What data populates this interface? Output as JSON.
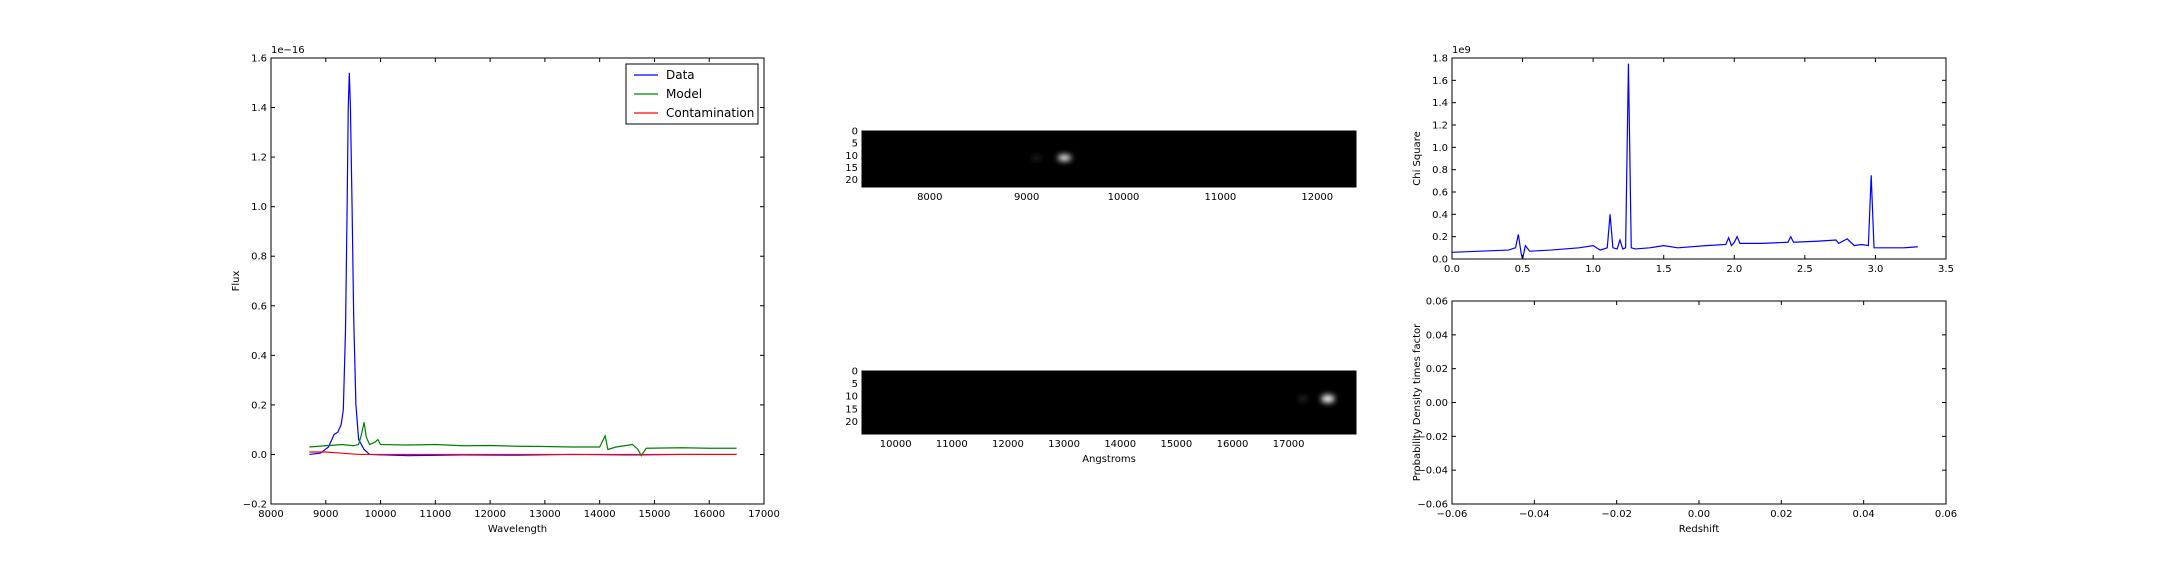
{
  "chart_data": [
    {
      "type": "line",
      "xlabel": "Wavelength",
      "ylabel": "Flux",
      "offset_text": "1e−16",
      "xlim": [
        8000,
        17000
      ],
      "ylim": [
        -0.2,
        1.6
      ],
      "xticks": [
        "8000",
        "9000",
        "10000",
        "11000",
        "12000",
        "13000",
        "14000",
        "15000",
        "16000",
        "17000"
      ],
      "yticks": [
        "−0.2",
        "0.0",
        "0.2",
        "0.4",
        "0.6",
        "0.8",
        "1.0",
        "1.2",
        "1.4",
        "1.6"
      ],
      "legend_position": "top-right",
      "series": [
        {
          "name": "Data",
          "color": "#0000ff",
          "points": [
            [
              8700,
              0.0
            ],
            [
              8900,
              0.005
            ],
            [
              9050,
              0.03
            ],
            [
              9150,
              0.08
            ],
            [
              9220,
              0.09
            ],
            [
              9280,
              0.12
            ],
            [
              9320,
              0.18
            ],
            [
              9360,
              0.5
            ],
            [
              9390,
              1.0
            ],
            [
              9410,
              1.4
            ],
            [
              9430,
              1.54
            ],
            [
              9450,
              1.4
            ],
            [
              9480,
              1.0
            ],
            [
              9510,
              0.55
            ],
            [
              9550,
              0.2
            ],
            [
              9600,
              0.06
            ],
            [
              9700,
              0.02
            ],
            [
              9800,
              0.0
            ],
            [
              10500,
              -0.005
            ],
            [
              11500,
              -0.002
            ],
            [
              12500,
              -0.003
            ],
            [
              13500,
              0.0
            ],
            [
              14500,
              -0.002
            ],
            [
              15500,
              0.0
            ],
            [
              16500,
              0.0
            ]
          ]
        },
        {
          "name": "Model",
          "color": "#008000",
          "points": [
            [
              8700,
              0.03
            ],
            [
              9000,
              0.035
            ],
            [
              9300,
              0.04
            ],
            [
              9500,
              0.035
            ],
            [
              9600,
              0.04
            ],
            [
              9650,
              0.08
            ],
            [
              9700,
              0.13
            ],
            [
              9740,
              0.07
            ],
            [
              9800,
              0.04
            ],
            [
              9900,
              0.05
            ],
            [
              9950,
              0.06
            ],
            [
              10000,
              0.04
            ],
            [
              10500,
              0.038
            ],
            [
              11000,
              0.04
            ],
            [
              11500,
              0.035
            ],
            [
              12000,
              0.036
            ],
            [
              12500,
              0.033
            ],
            [
              13000,
              0.032
            ],
            [
              13500,
              0.03
            ],
            [
              14000,
              0.03
            ],
            [
              14100,
              0.075
            ],
            [
              14150,
              0.02
            ],
            [
              14300,
              0.03
            ],
            [
              14600,
              0.04
            ],
            [
              14700,
              0.02
            ],
            [
              14760,
              -0.005
            ],
            [
              14850,
              0.025
            ],
            [
              15500,
              0.027
            ],
            [
              16000,
              0.025
            ],
            [
              16500,
              0.025
            ]
          ]
        },
        {
          "name": "Contamination",
          "color": "#ff0000",
          "points": [
            [
              8700,
              0.01
            ],
            [
              9000,
              0.01
            ],
            [
              9300,
              0.005
            ],
            [
              9600,
              0.0
            ],
            [
              10000,
              0.0
            ],
            [
              11000,
              0.0
            ],
            [
              12000,
              0.0
            ],
            [
              13000,
              0.0
            ],
            [
              14000,
              0.0
            ],
            [
              15000,
              0.0
            ],
            [
              16500,
              0.0
            ]
          ]
        }
      ]
    },
    {
      "type": "heatmap",
      "xlim": [
        7300,
        12400
      ],
      "ylim": [
        0,
        23
      ],
      "xticks": [
        "8000",
        "9000",
        "10000",
        "11000",
        "12000"
      ],
      "yticks": [
        "0",
        "5",
        "10",
        "15",
        "20"
      ],
      "colormap": "gray",
      "spots": [
        {
          "x": 9390,
          "y": 11,
          "intensity": 1.0,
          "spread_x": 70,
          "spread_y": 1.3
        },
        {
          "x": 9100,
          "y": 11,
          "intensity": 0.12,
          "spread_x": 60,
          "spread_y": 1.2
        }
      ]
    },
    {
      "type": "heatmap",
      "xlabel": "Angstroms",
      "xlim": [
        9400,
        18200
      ],
      "ylim": [
        0,
        25
      ],
      "xticks": [
        "10000",
        "11000",
        "12000",
        "13000",
        "14000",
        "15000",
        "16000",
        "17000"
      ],
      "yticks": [
        "0",
        "5",
        "10",
        "15",
        "20"
      ],
      "colormap": "gray",
      "spots": [
        {
          "x": 17700,
          "y": 11,
          "intensity": 1.0,
          "spread_x": 120,
          "spread_y": 1.6
        },
        {
          "x": 17250,
          "y": 11,
          "intensity": 0.15,
          "spread_x": 80,
          "spread_y": 1.3
        }
      ]
    },
    {
      "type": "line",
      "ylabel": "Chi Square",
      "offset_text": "1e9",
      "xlim": [
        0.0,
        3.5
      ],
      "ylim": [
        0.0,
        1.8
      ],
      "xticks": [
        "0.0",
        "0.5",
        "1.0",
        "1.5",
        "2.0",
        "2.5",
        "3.0",
        "3.5"
      ],
      "yticks": [
        "0.0",
        "0.2",
        "0.4",
        "0.6",
        "0.8",
        "1.0",
        "1.2",
        "1.4",
        "1.6",
        "1.8"
      ],
      "series": [
        {
          "color": "#0000ff",
          "points": [
            [
              0.0,
              0.06
            ],
            [
              0.2,
              0.07
            ],
            [
              0.4,
              0.08
            ],
            [
              0.45,
              0.1
            ],
            [
              0.47,
              0.22
            ],
            [
              0.49,
              0.05
            ],
            [
              0.5,
              0.0
            ],
            [
              0.52,
              0.12
            ],
            [
              0.55,
              0.07
            ],
            [
              0.7,
              0.08
            ],
            [
              0.9,
              0.1
            ],
            [
              1.0,
              0.12
            ],
            [
              1.05,
              0.08
            ],
            [
              1.1,
              0.1
            ],
            [
              1.12,
              0.4
            ],
            [
              1.14,
              0.1
            ],
            [
              1.17,
              0.09
            ],
            [
              1.19,
              0.17
            ],
            [
              1.21,
              0.09
            ],
            [
              1.23,
              0.1
            ],
            [
              1.25,
              1.75
            ],
            [
              1.27,
              0.1
            ],
            [
              1.3,
              0.09
            ],
            [
              1.4,
              0.1
            ],
            [
              1.5,
              0.12
            ],
            [
              1.6,
              0.1
            ],
            [
              1.8,
              0.12
            ],
            [
              1.94,
              0.13
            ],
            [
              1.96,
              0.19
            ],
            [
              1.98,
              0.12
            ],
            [
              2.0,
              0.15
            ],
            [
              2.02,
              0.2
            ],
            [
              2.04,
              0.14
            ],
            [
              2.2,
              0.14
            ],
            [
              2.38,
              0.15
            ],
            [
              2.4,
              0.2
            ],
            [
              2.42,
              0.15
            ],
            [
              2.6,
              0.16
            ],
            [
              2.72,
              0.17
            ],
            [
              2.74,
              0.14
            ],
            [
              2.8,
              0.18
            ],
            [
              2.85,
              0.12
            ],
            [
              2.9,
              0.13
            ],
            [
              2.95,
              0.12
            ],
            [
              2.97,
              0.75
            ],
            [
              2.99,
              0.1
            ],
            [
              3.05,
              0.1
            ],
            [
              3.2,
              0.1
            ],
            [
              3.3,
              0.11
            ]
          ]
        }
      ]
    },
    {
      "type": "line",
      "xlabel": "Redshift",
      "ylabel": "Probability Density times factor",
      "xlim": [
        -0.06,
        0.06
      ],
      "ylim": [
        -0.06,
        0.06
      ],
      "xticks": [
        "−0.06",
        "−0.04",
        "−0.02",
        "0.00",
        "0.02",
        "0.04",
        "0.06"
      ],
      "yticks": [
        "−0.06",
        "−0.04",
        "−0.02",
        "0.00",
        "0.02",
        "0.04",
        "0.06"
      ],
      "series": []
    }
  ]
}
